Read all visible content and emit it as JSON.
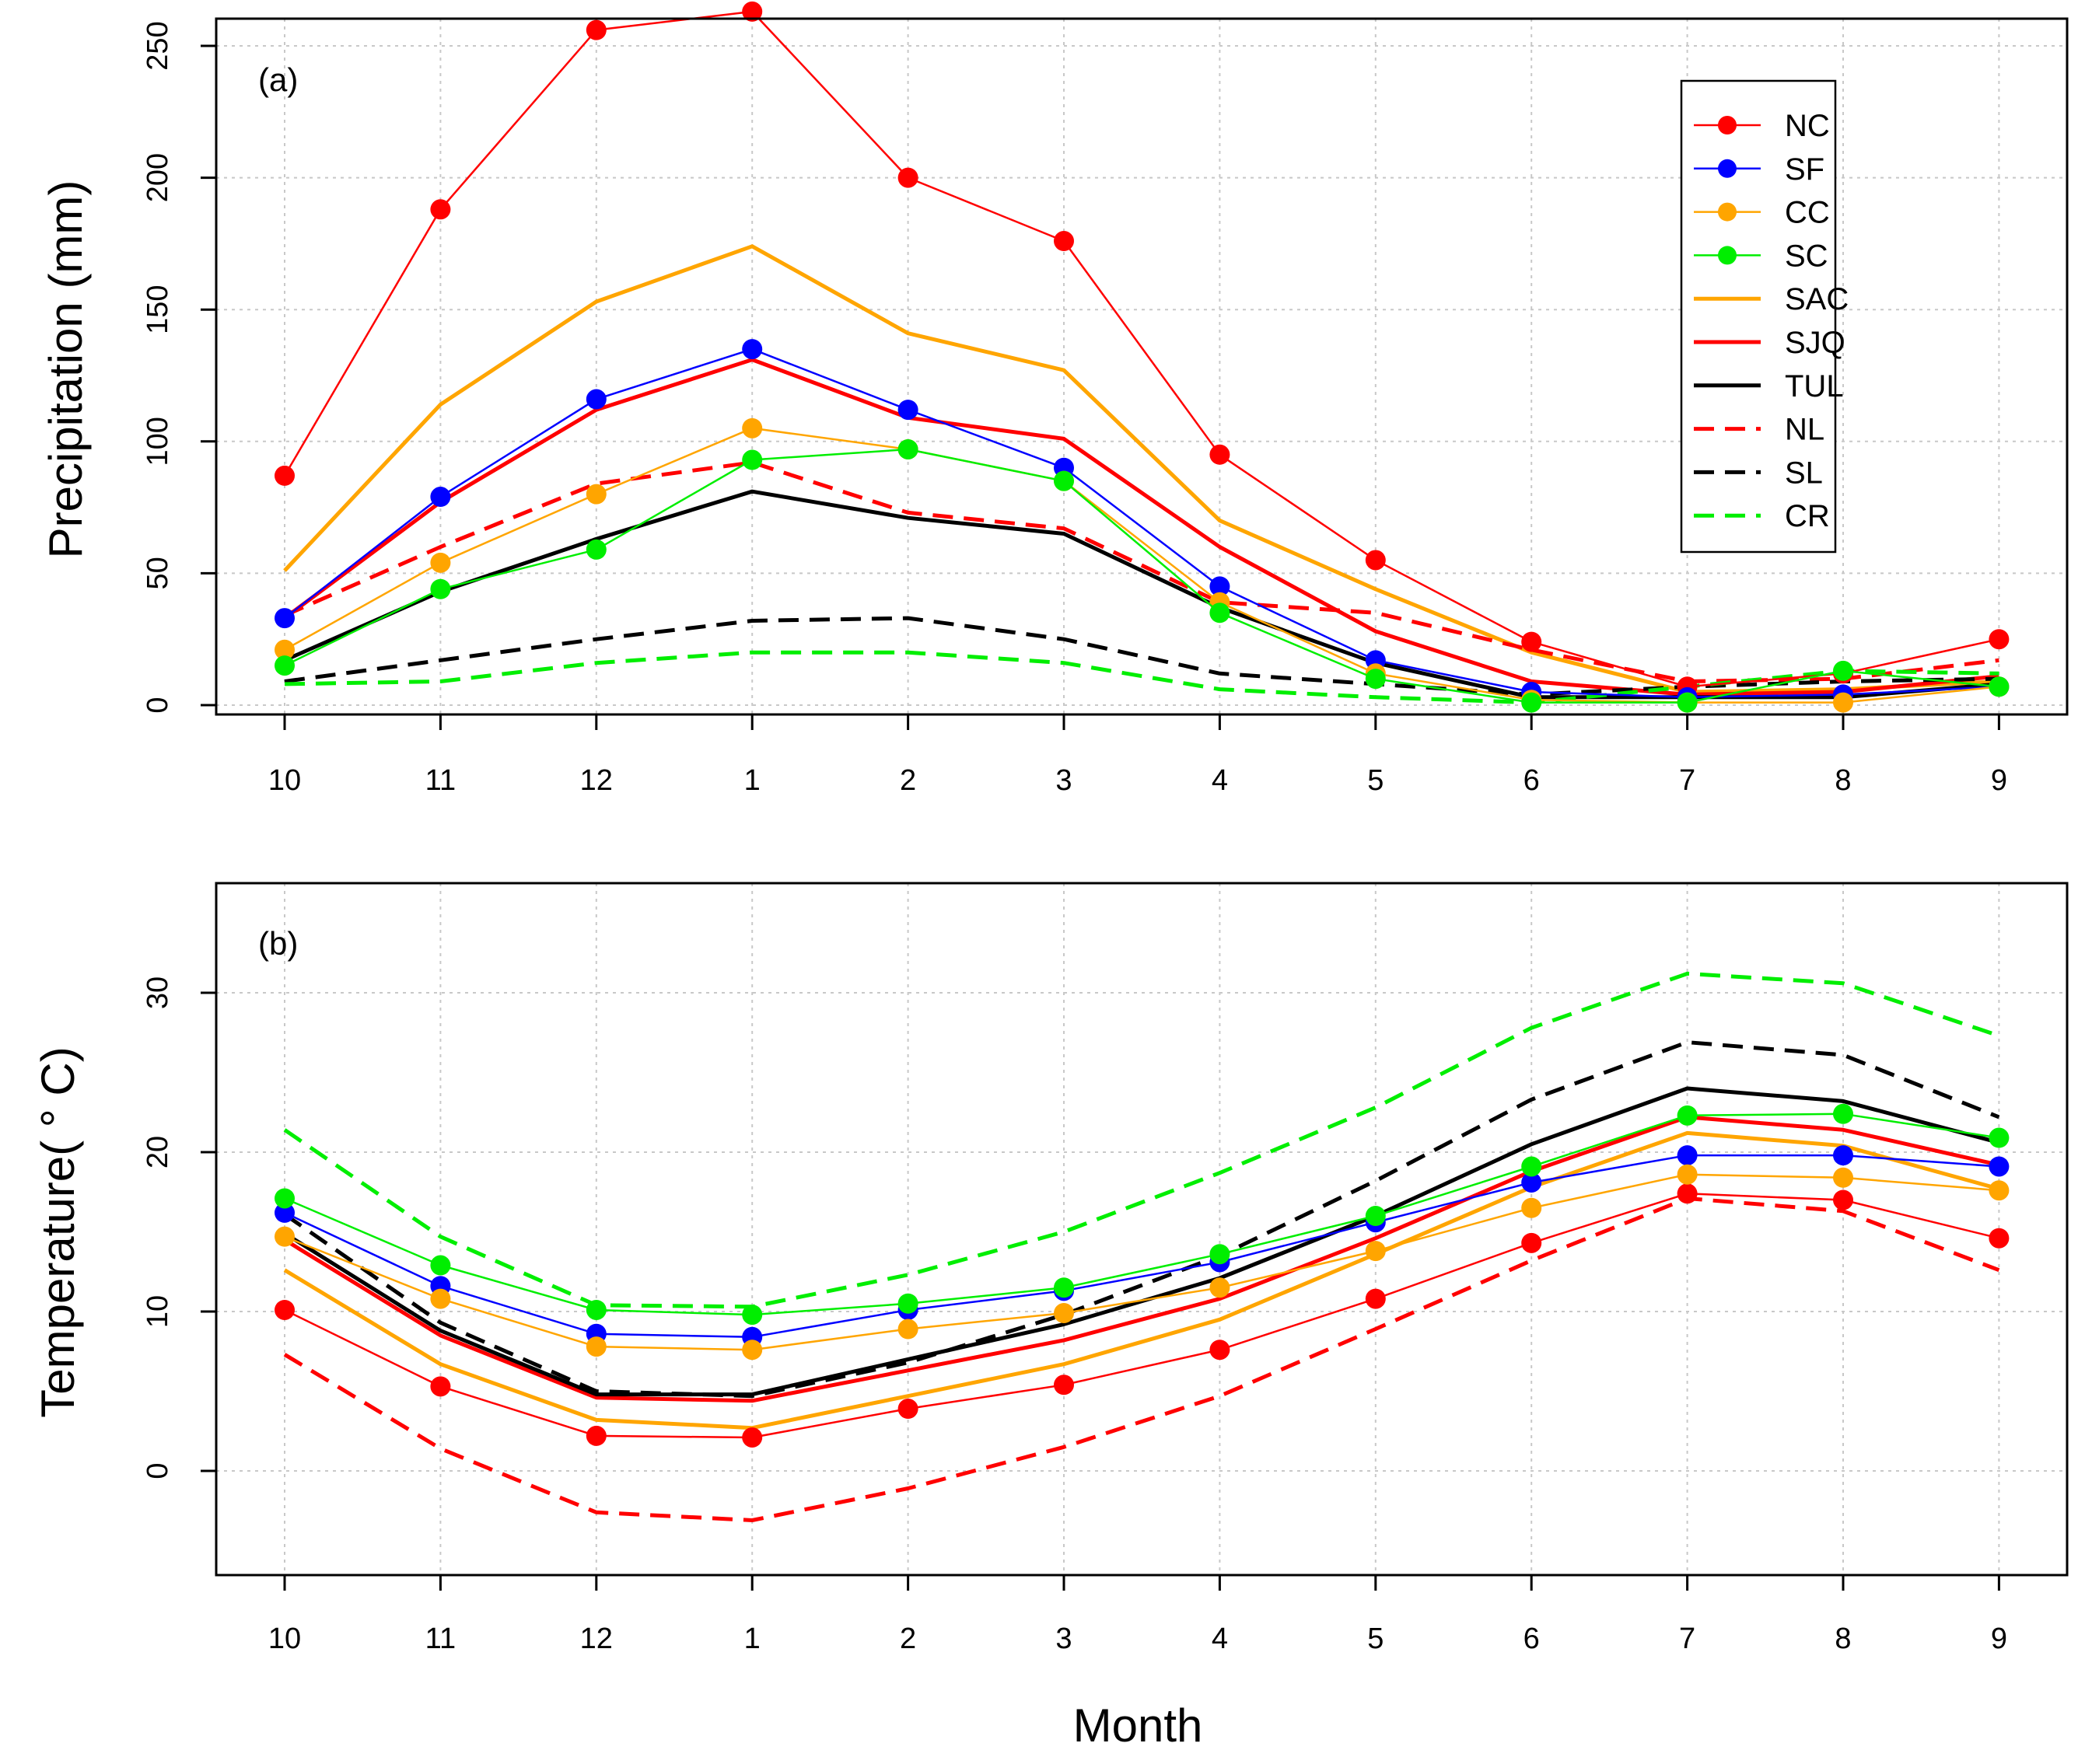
{
  "chart_data": [
    {
      "type": "line",
      "panel_label": "(a)",
      "ylabel": "Precipitation (mm)",
      "xlabel": "",
      "categories": [
        "10",
        "11",
        "12",
        "1",
        "2",
        "3",
        "4",
        "5",
        "6",
        "7",
        "8",
        "9"
      ],
      "yticks": [
        0,
        50,
        100,
        150,
        200,
        250
      ],
      "ylim": [
        -2,
        264
      ],
      "grid": true,
      "legend": {
        "position": "top-right",
        "entries": [
          "NC",
          "SF",
          "CC",
          "SC",
          "SAC",
          "SJQ",
          "TUL",
          "NL",
          "SL",
          "CR"
        ]
      },
      "series": [
        {
          "name": "NC",
          "color": "#ff0000",
          "style": "thin-marker",
          "values": [
            87,
            188,
            256,
            263,
            200,
            176,
            95,
            55,
            24,
            7,
            12,
            25
          ]
        },
        {
          "name": "SF",
          "color": "#0000ff",
          "style": "thin-marker",
          "values": [
            33,
            79,
            116,
            135,
            112,
            90,
            45,
            17,
            5,
            3,
            4,
            7
          ]
        },
        {
          "name": "CC",
          "color": "#ffa500",
          "style": "thin-marker",
          "values": [
            21,
            54,
            80,
            105,
            97,
            85,
            39,
            12,
            2,
            1,
            1,
            7
          ]
        },
        {
          "name": "SC",
          "color": "#00ee00",
          "style": "thin-marker",
          "values": [
            15,
            44,
            59,
            93,
            97,
            85,
            35,
            10,
            1,
            1,
            13,
            7
          ]
        },
        {
          "name": "SAC",
          "color": "#ffa500",
          "style": "thick-solid",
          "values": [
            51,
            114,
            153,
            174,
            141,
            127,
            70,
            44,
            20,
            5,
            6,
            9
          ]
        },
        {
          "name": "SJQ",
          "color": "#ff0000",
          "style": "thick-solid",
          "values": [
            33,
            77,
            112,
            131,
            109,
            101,
            60,
            28,
            9,
            4,
            5,
            11
          ]
        },
        {
          "name": "TUL",
          "color": "#000000",
          "style": "thick-solid",
          "values": [
            17,
            43,
            63,
            81,
            71,
            65,
            37,
            16,
            3,
            3,
            3,
            8
          ]
        },
        {
          "name": "NL",
          "color": "#ff0000",
          "style": "thick-dashed",
          "values": [
            34,
            60,
            84,
            92,
            73,
            67,
            39,
            35,
            21,
            9,
            10,
            17
          ]
        },
        {
          "name": "SL",
          "color": "#000000",
          "style": "thick-dashed",
          "values": [
            9,
            17,
            25,
            32,
            33,
            25,
            12,
            8,
            4,
            7,
            9,
            10
          ]
        },
        {
          "name": "CR",
          "color": "#00ee00",
          "style": "thick-dashed",
          "values": [
            8,
            9,
            16,
            20,
            20,
            16,
            6,
            3,
            1,
            7,
            13,
            12
          ]
        }
      ]
    },
    {
      "type": "line",
      "panel_label": "(b)",
      "ylabel": "Temperature( ° C)",
      "xlabel": "Month",
      "categories": [
        "10",
        "11",
        "12",
        "1",
        "2",
        "3",
        "4",
        "5",
        "6",
        "7",
        "8",
        "9"
      ],
      "yticks": [
        0,
        10,
        20,
        30
      ],
      "ylim": [
        -6.5,
        36.5
      ],
      "grid": true,
      "series": [
        {
          "name": "NC",
          "color": "#ff0000",
          "style": "thin-marker",
          "values": [
            10.1,
            5.3,
            2.2,
            2.1,
            3.9,
            5.4,
            7.6,
            10.8,
            14.3,
            17.4,
            17.0,
            14.6
          ]
        },
        {
          "name": "SF",
          "color": "#0000ff",
          "style": "thin-marker",
          "values": [
            16.2,
            11.6,
            8.6,
            8.4,
            10.1,
            11.3,
            13.1,
            15.6,
            18.1,
            19.8,
            19.8,
            19.1
          ]
        },
        {
          "name": "CC",
          "color": "#ffa500",
          "style": "thin-marker",
          "values": [
            14.7,
            10.8,
            7.8,
            7.6,
            8.9,
            9.9,
            11.5,
            13.8,
            16.5,
            18.6,
            18.4,
            17.6
          ]
        },
        {
          "name": "SC",
          "color": "#00ee00",
          "style": "thin-marker",
          "values": [
            17.1,
            12.9,
            10.1,
            9.8,
            10.5,
            11.5,
            13.6,
            16.0,
            19.1,
            22.3,
            22.4,
            20.9
          ]
        },
        {
          "name": "SAC",
          "color": "#ffa500",
          "style": "thick-solid",
          "values": [
            12.6,
            6.7,
            3.2,
            2.7,
            4.7,
            6.7,
            9.5,
            13.6,
            17.8,
            21.2,
            20.4,
            17.7
          ]
        },
        {
          "name": "SJQ",
          "color": "#ff0000",
          "style": "thick-solid",
          "values": [
            14.5,
            8.5,
            4.6,
            4.4,
            6.3,
            8.2,
            10.8,
            14.6,
            18.8,
            22.2,
            21.4,
            19.2
          ]
        },
        {
          "name": "TUL",
          "color": "#000000",
          "style": "thick-solid",
          "values": [
            14.9,
            8.8,
            4.8,
            4.8,
            7.0,
            9.2,
            12.1,
            16.0,
            20.5,
            24.0,
            23.2,
            20.6
          ]
        },
        {
          "name": "NL",
          "color": "#ff0000",
          "style": "thick-dashed",
          "values": [
            7.3,
            1.4,
            -2.6,
            -3.1,
            -1.1,
            1.5,
            4.7,
            8.9,
            13.2,
            17.1,
            16.3,
            12.6
          ]
        },
        {
          "name": "SL",
          "color": "#000000",
          "style": "thick-dashed",
          "values": [
            16.1,
            9.3,
            5.0,
            4.7,
            6.8,
            9.8,
            13.5,
            18.2,
            23.3,
            26.9,
            26.1,
            22.2
          ]
        },
        {
          "name": "CR",
          "color": "#00ee00",
          "style": "thick-dashed",
          "values": [
            21.4,
            14.7,
            10.4,
            10.3,
            12.3,
            15.0,
            18.7,
            22.8,
            27.8,
            31.2,
            30.6,
            27.3
          ]
        }
      ]
    }
  ]
}
